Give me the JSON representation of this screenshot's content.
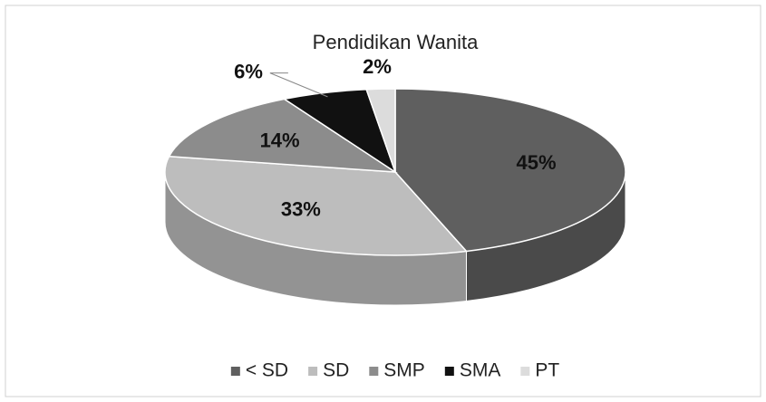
{
  "chart_data": {
    "type": "pie",
    "title": "Pendidikan Wanita",
    "categories": [
      "< SD",
      "SD",
      "SMP",
      "SMA",
      "PT"
    ],
    "values": [
      45,
      33,
      14,
      6,
      2
    ],
    "value_labels": [
      "45%",
      "33%",
      "14%",
      "6%",
      "2%"
    ],
    "colors": [
      "#5f5f5f",
      "#bdbdbd",
      "#8c8c8c",
      "#111111",
      "#dcdcdc"
    ],
    "legend": "bottom"
  }
}
